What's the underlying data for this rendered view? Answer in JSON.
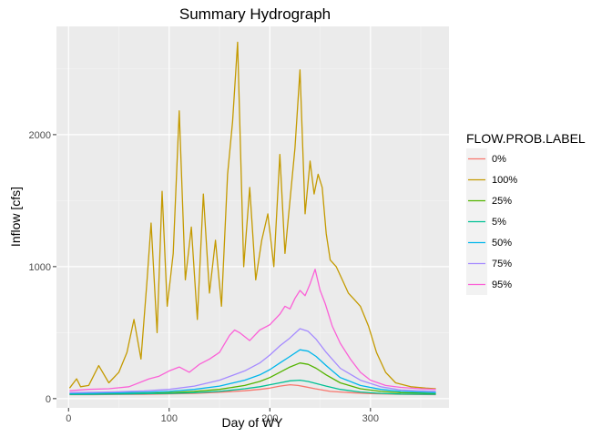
{
  "chart_data": {
    "type": "line",
    "title": "Summary Hydrograph",
    "xlabel": "Day of WY",
    "ylabel": "Inflow [cfs]",
    "xlim": [
      -12,
      378
    ],
    "ylim": [
      -70,
      2820
    ],
    "xticks": [
      0,
      100,
      200,
      300
    ],
    "yticks": [
      0,
      1000,
      2000
    ],
    "grid": true,
    "legend": {
      "title": "FLOW.PROB.LABEL",
      "placement": "right"
    },
    "series": [
      {
        "name": "0%",
        "color": "#F8766D",
        "x": [
          1,
          25,
          50,
          75,
          100,
          125,
          150,
          175,
          190,
          200,
          210,
          220,
          228,
          235,
          245,
          260,
          280,
          300,
          330,
          365
        ],
        "y": [
          30,
          30,
          32,
          33,
          36,
          40,
          48,
          60,
          70,
          80,
          95,
          105,
          100,
          90,
          75,
          55,
          45,
          38,
          33,
          30
        ]
      },
      {
        "name": "100%",
        "color": "#C49A00",
        "x": [
          1,
          8,
          12,
          20,
          30,
          40,
          50,
          58,
          65,
          72,
          78,
          82,
          88,
          93,
          98,
          104,
          110,
          116,
          122,
          128,
          134,
          140,
          146,
          152,
          158,
          163,
          168,
          174,
          180,
          186,
          192,
          198,
          204,
          210,
          215,
          220,
          225,
          230,
          235,
          240,
          244,
          248,
          252,
          256,
          260,
          266,
          272,
          278,
          284,
          290,
          298,
          306,
          315,
          325,
          340,
          355,
          365
        ],
        "y": [
          80,
          150,
          90,
          100,
          250,
          120,
          200,
          350,
          600,
          300,
          900,
          1330,
          500,
          1570,
          700,
          1100,
          2180,
          900,
          1300,
          600,
          1550,
          800,
          1200,
          700,
          1700,
          2100,
          2700,
          1000,
          1600,
          900,
          1200,
          1400,
          1000,
          1850,
          1100,
          1500,
          1900,
          2490,
          1400,
          1800,
          1550,
          1700,
          1600,
          1250,
          1050,
          1000,
          900,
          800,
          750,
          700,
          550,
          350,
          200,
          120,
          90,
          80,
          75
        ]
      },
      {
        "name": "25%",
        "color": "#53B400",
        "x": [
          1,
          25,
          50,
          75,
          100,
          125,
          150,
          175,
          190,
          200,
          210,
          220,
          230,
          238,
          246,
          256,
          270,
          290,
          310,
          330,
          365
        ],
        "y": [
          35,
          36,
          38,
          40,
          45,
          55,
          70,
          100,
          130,
          160,
          200,
          240,
          270,
          260,
          230,
          180,
          120,
          75,
          55,
          45,
          40
        ]
      },
      {
        "name": "5%",
        "color": "#00C094",
        "x": [
          1,
          25,
          50,
          75,
          100,
          125,
          150,
          175,
          190,
          200,
          210,
          220,
          230,
          238,
          246,
          256,
          270,
          290,
          310,
          330,
          365
        ],
        "y": [
          32,
          33,
          35,
          37,
          40,
          45,
          55,
          75,
          90,
          105,
          120,
          135,
          140,
          130,
          115,
          95,
          70,
          50,
          40,
          35,
          33
        ]
      },
      {
        "name": "50%",
        "color": "#00B6EB",
        "x": [
          1,
          25,
          50,
          75,
          100,
          125,
          150,
          175,
          190,
          200,
          210,
          220,
          230,
          238,
          246,
          256,
          270,
          290,
          310,
          330,
          365
        ],
        "y": [
          40,
          42,
          45,
          48,
          55,
          70,
          95,
          140,
          180,
          220,
          270,
          320,
          370,
          360,
          320,
          250,
          160,
          100,
          70,
          55,
          45
        ]
      },
      {
        "name": "75%",
        "color": "#A58AFF",
        "x": [
          1,
          25,
          50,
          75,
          100,
          125,
          150,
          175,
          190,
          200,
          210,
          220,
          230,
          238,
          246,
          256,
          270,
          290,
          310,
          330,
          365
        ],
        "y": [
          45,
          48,
          52,
          58,
          70,
          95,
          140,
          210,
          270,
          330,
          400,
          460,
          530,
          510,
          450,
          350,
          230,
          140,
          90,
          65,
          55
        ]
      },
      {
        "name": "95%",
        "color": "#FB61D7",
        "x": [
          1,
          20,
          40,
          60,
          80,
          90,
          100,
          110,
          120,
          130,
          140,
          150,
          160,
          165,
          170,
          180,
          190,
          200,
          210,
          215,
          220,
          225,
          230,
          235,
          240,
          245,
          250,
          255,
          262,
          270,
          280,
          290,
          300,
          315,
          330,
          350,
          365
        ],
        "y": [
          60,
          70,
          75,
          90,
          150,
          170,
          210,
          240,
          200,
          260,
          300,
          350,
          480,
          520,
          500,
          440,
          520,
          560,
          640,
          700,
          680,
          760,
          820,
          780,
          870,
          980,
          820,
          720,
          550,
          420,
          300,
          200,
          140,
          100,
          85,
          75,
          70
        ]
      }
    ]
  }
}
